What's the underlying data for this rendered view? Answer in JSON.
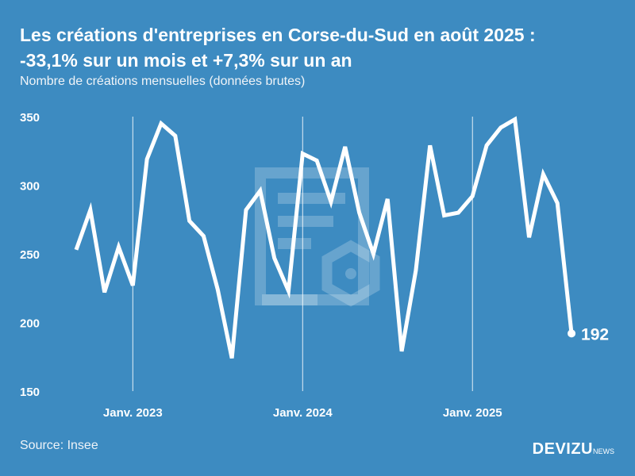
{
  "title_line1": "Les créations d'entreprises en Corse-du-Sud en août 2025 :",
  "title_line2": "-33,1% sur un mois et +7,3% sur un an",
  "subtitle": "Nombre de créations mensuelles (données brutes)",
  "source": "Source: Insee",
  "logo": {
    "main": "DEVIZU",
    "suffix": "NEWS"
  },
  "colors": {
    "background": "#3d8bc1",
    "line": "#ffffff"
  },
  "chart_data": {
    "type": "line",
    "title": "Les créations d'entreprises en Corse-du-Sud en août 2025",
    "ylabel": "Nombre de créations mensuelles (données brutes)",
    "ylim": [
      150,
      350
    ],
    "yticks": [
      350,
      300,
      250,
      200,
      150
    ],
    "xtick_labels": [
      {
        "label": "Janv. 2023",
        "index": 4
      },
      {
        "label": "Janv. 2024",
        "index": 16
      },
      {
        "label": "Janv. 2025",
        "index": 28
      }
    ],
    "x": [
      "2022-09",
      "2022-10",
      "2022-11",
      "2022-12",
      "2023-01",
      "2023-02",
      "2023-03",
      "2023-04",
      "2023-05",
      "2023-06",
      "2023-07",
      "2023-08",
      "2023-09",
      "2023-10",
      "2023-11",
      "2023-12",
      "2024-01",
      "2024-02",
      "2024-03",
      "2024-04",
      "2024-05",
      "2024-06",
      "2024-07",
      "2024-08",
      "2024-09",
      "2024-10",
      "2024-11",
      "2024-12",
      "2025-01",
      "2025-02",
      "2025-03",
      "2025-04",
      "2025-05",
      "2025-06",
      "2025-07",
      "2025-08"
    ],
    "values": [
      253,
      282,
      222,
      255,
      227,
      319,
      345,
      336,
      274,
      263,
      224,
      174,
      282,
      296,
      247,
      223,
      323,
      318,
      288,
      328,
      280,
      250,
      290,
      179,
      238,
      329,
      278,
      280,
      292,
      329,
      342,
      348,
      262,
      308,
      287,
      192
    ],
    "last_label": "192"
  }
}
